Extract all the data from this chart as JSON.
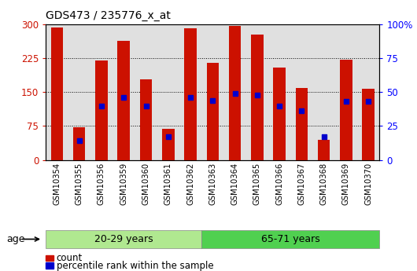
{
  "title": "GDS473 / 235776_x_at",
  "samples": [
    "GSM10354",
    "GSM10355",
    "GSM10356",
    "GSM10359",
    "GSM10360",
    "GSM10361",
    "GSM10362",
    "GSM10363",
    "GSM10364",
    "GSM10365",
    "GSM10366",
    "GSM10367",
    "GSM10368",
    "GSM10369",
    "GSM10370"
  ],
  "counts": [
    293,
    72,
    220,
    263,
    178,
    68,
    292,
    215,
    297,
    277,
    205,
    160,
    45,
    222,
    157
  ],
  "percentiles_pct": [
    null,
    14,
    40,
    46,
    40,
    17,
    46,
    44,
    49,
    48,
    40,
    36,
    17,
    43,
    43
  ],
  "group1_label": "20-29 years",
  "group2_label": "65-71 years",
  "group1_count": 7,
  "group2_count": 8,
  "ylim_left": [
    0,
    300
  ],
  "ylim_right": [
    0,
    100
  ],
  "yticks_left": [
    0,
    75,
    150,
    225,
    300
  ],
  "yticks_right": [
    0,
    25,
    50,
    75,
    100
  ],
  "bar_color": "#cc1100",
  "pct_color": "#0000cc",
  "plot_bg_color": "#e0e0e0",
  "group1_color": "#b0e890",
  "group2_color": "#50d050",
  "bar_width": 0.55,
  "legend_count_label": "count",
  "legend_pct_label": "percentile rank within the sample",
  "age_label": "age"
}
